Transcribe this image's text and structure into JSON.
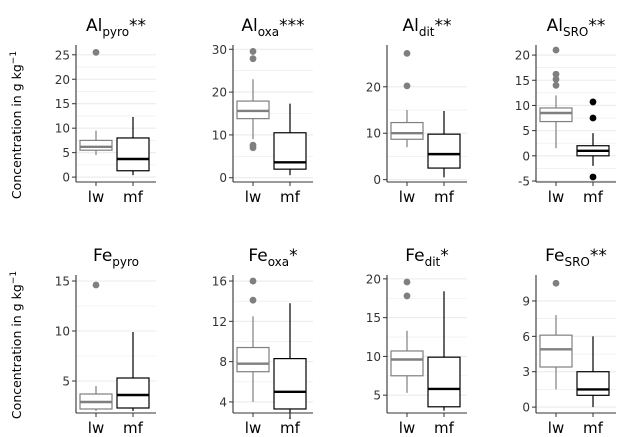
{
  "chart_data": {
    "type": "boxplot",
    "ylabel": "Concentration in g kg",
    "ylabel_sup": "−1",
    "categories": [
      "lw",
      "mf"
    ],
    "colors": {
      "lw": "#7f7f7f",
      "mf": "#000000",
      "grid": "#ebebeb"
    },
    "panels": [
      {
        "base": "Al",
        "sub": "pyro",
        "sig": "**",
        "ylim": [
          -1,
          27
        ],
        "ticks": [
          0,
          5,
          10,
          15,
          20,
          25
        ],
        "boxes": [
          {
            "category": "lw",
            "whisker_low": 4.5,
            "q1": 5.5,
            "median": 6.2,
            "q3": 7.5,
            "whisker_high": 9.5,
            "outliers": [
              25.5
            ]
          },
          {
            "category": "mf",
            "whisker_low": 0.4,
            "q1": 1.3,
            "median": 3.7,
            "q3": 8.0,
            "whisker_high": 12.3,
            "outliers": []
          }
        ]
      },
      {
        "base": "Al",
        "sub": "oxa",
        "sig": "***",
        "ylim": [
          -1,
          31
        ],
        "ticks": [
          0,
          10,
          20,
          30
        ],
        "boxes": [
          {
            "category": "lw",
            "whisker_low": 9.0,
            "q1": 13.8,
            "median": 15.6,
            "q3": 17.9,
            "whisker_high": 23.0,
            "outliers": [
              7.0,
              7.6,
              27.8,
              29.5
            ]
          },
          {
            "category": "mf",
            "whisker_low": 0.6,
            "q1": 2.0,
            "median": 3.6,
            "q3": 10.5,
            "whisker_high": 17.3,
            "outliers": []
          }
        ]
      },
      {
        "base": "Al",
        "sub": "dit",
        "sig": "**",
        "ylim": [
          -0.5,
          29
        ],
        "ticks": [
          0,
          10,
          20
        ],
        "boxes": [
          {
            "category": "lw",
            "whisker_low": 7.0,
            "q1": 8.7,
            "median": 10.0,
            "q3": 12.3,
            "whisker_high": 15.0,
            "outliers": [
              20.2,
              27.2
            ]
          },
          {
            "category": "mf",
            "whisker_low": 0.5,
            "q1": 2.5,
            "median": 5.5,
            "q3": 9.8,
            "whisker_high": 14.8,
            "outliers": []
          }
        ]
      },
      {
        "base": "Al",
        "sub": "SRO",
        "sig": "**",
        "ylim": [
          -5.2,
          22
        ],
        "ticks": [
          -5,
          0,
          5,
          10,
          15,
          20
        ],
        "boxes": [
          {
            "category": "lw",
            "whisker_low": 1.5,
            "q1": 6.8,
            "median": 8.5,
            "q3": 9.5,
            "whisker_high": 12.0,
            "outliers": [
              14.0,
              15.2,
              16.2,
              21.0
            ]
          },
          {
            "category": "mf",
            "whisker_low": -2.0,
            "q1": 0.0,
            "median": 1.0,
            "q3": 2.0,
            "whisker_high": 4.5,
            "outliers": [
              -4.2,
              7.5,
              10.7
            ]
          }
        ]
      },
      {
        "base": "Fe",
        "sub": "pyro",
        "sig": "",
        "ylim": [
          1.8,
          15.6
        ],
        "ticks": [
          5,
          10,
          15
        ],
        "boxes": [
          {
            "category": "lw",
            "whisker_low": 2.0,
            "q1": 2.2,
            "median": 2.9,
            "q3": 3.7,
            "whisker_high": 4.5,
            "outliers": [
              14.6
            ]
          },
          {
            "category": "mf",
            "whisker_low": 2.0,
            "q1": 2.3,
            "median": 3.6,
            "q3": 5.3,
            "whisker_high": 9.9,
            "outliers": []
          }
        ]
      },
      {
        "base": "Fe",
        "sub": "oxa",
        "sig": "*",
        "ylim": [
          2.9,
          16.6
        ],
        "ticks": [
          4,
          8,
          12,
          16
        ],
        "boxes": [
          {
            "category": "lw",
            "whisker_low": 4.0,
            "q1": 7.0,
            "median": 7.8,
            "q3": 9.4,
            "whisker_high": 12.5,
            "outliers": [
              14.1,
              16.0
            ]
          },
          {
            "category": "mf",
            "whisker_low": 2.3,
            "q1": 3.3,
            "median": 5.0,
            "q3": 8.3,
            "whisker_high": 13.8,
            "outliers": []
          }
        ]
      },
      {
        "base": "Fe",
        "sub": "dit",
        "sig": "*",
        "ylim": [
          2.7,
          20.5
        ],
        "ticks": [
          5,
          10,
          15,
          20
        ],
        "boxes": [
          {
            "category": "lw",
            "whisker_low": 5.3,
            "q1": 7.5,
            "median": 9.6,
            "q3": 10.7,
            "whisker_high": 13.3,
            "outliers": [
              17.8,
              19.6
            ]
          },
          {
            "category": "mf",
            "whisker_low": 3.0,
            "q1": 3.5,
            "median": 5.8,
            "q3": 9.9,
            "whisker_high": 18.4,
            "outliers": []
          }
        ]
      },
      {
        "base": "Fe",
        "sub": "SRO",
        "sig": "**",
        "ylim": [
          -0.5,
          11.2
        ],
        "ticks": [
          0,
          3,
          6,
          9
        ],
        "boxes": [
          {
            "category": "lw",
            "whisker_low": 1.5,
            "q1": 3.4,
            "median": 4.9,
            "q3": 6.1,
            "whisker_high": 7.8,
            "outliers": [
              10.5
            ]
          },
          {
            "category": "mf",
            "whisker_low": 0.0,
            "q1": 1.0,
            "median": 1.5,
            "q3": 3.0,
            "whisker_high": 6.0,
            "outliers": []
          }
        ]
      }
    ]
  }
}
